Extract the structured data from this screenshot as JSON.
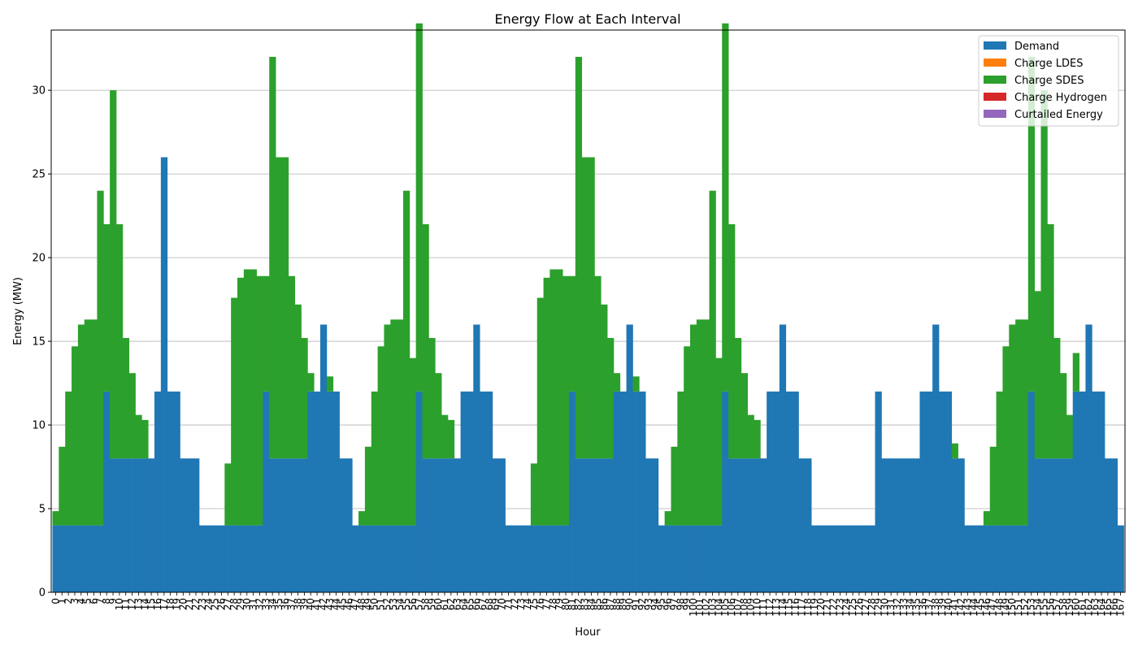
{
  "chart_data": {
    "type": "bar",
    "stacked": true,
    "title": "Energy Flow at Each Interval",
    "xlabel": "Hour",
    "ylabel": "Energy (MW)",
    "ylim": [
      0,
      33.6
    ],
    "yticks": [
      0,
      5,
      10,
      15,
      20,
      25,
      30
    ],
    "grid": "y",
    "legend_position": "top-right",
    "x_start": 0,
    "x_end": 167,
    "series": [
      {
        "name": "Demand",
        "color": "#1f77b4",
        "values": [
          4,
          4,
          4,
          4,
          4,
          4,
          4,
          4,
          12,
          8,
          8,
          8,
          8,
          8,
          8,
          8,
          12,
          26,
          12,
          12,
          8,
          8,
          8,
          4,
          4,
          4,
          4,
          4,
          4,
          4,
          4,
          4,
          4,
          12,
          8,
          8,
          8,
          8,
          8,
          8,
          12,
          12,
          16,
          12,
          12,
          8,
          8,
          4,
          4,
          4,
          4,
          4,
          4,
          4,
          4,
          4,
          4,
          12,
          8,
          8,
          8,
          8,
          8,
          8,
          12,
          12,
          16,
          12,
          12,
          8,
          8,
          4,
          4,
          4,
          4,
          4,
          4,
          4,
          4,
          4,
          4,
          12,
          8,
          8,
          8,
          8,
          8,
          8,
          12,
          12,
          16,
          12,
          12,
          8,
          8,
          4,
          4,
          4,
          4,
          4,
          4,
          4,
          4,
          4,
          4,
          12,
          8,
          8,
          8,
          8,
          8,
          8,
          12,
          12,
          16,
          12,
          12,
          8,
          8,
          4,
          4,
          4,
          4,
          4,
          4,
          4,
          4,
          4,
          4,
          12,
          8,
          8,
          8,
          8,
          8,
          8,
          12,
          12,
          16,
          12,
          12,
          8,
          8,
          4,
          4,
          4,
          4,
          4,
          4,
          4,
          4,
          4,
          4,
          12,
          8,
          8,
          8,
          8,
          8,
          8,
          12,
          12,
          16,
          12,
          12,
          8,
          8,
          4
        ]
      },
      {
        "name": "Charge LDES",
        "color": "#ff7f0e",
        "values": []
      },
      {
        "name": "Charge SDES",
        "color": "#2ca02c",
        "values": [
          0.85,
          4.7,
          8,
          10.7,
          12,
          12.3,
          12.3,
          20,
          10,
          22,
          14,
          7.2,
          5.1,
          2.6,
          2.3,
          0,
          0,
          0,
          0,
          0,
          0,
          0,
          0,
          0,
          0,
          0,
          0,
          3.7,
          13.6,
          14.8,
          15.3,
          15.3,
          14.9,
          6.9,
          24,
          18,
          18,
          10.9,
          9.2,
          7.2,
          1.1,
          0,
          0,
          0.9,
          0,
          0,
          0,
          0,
          0.85,
          4.7,
          8,
          10.7,
          12,
          12.3,
          12.3,
          20,
          10,
          22,
          14,
          7.2,
          5.1,
          2.6,
          2.3,
          0,
          0,
          0,
          0,
          0,
          0,
          0,
          0,
          0,
          0,
          0,
          0,
          3.7,
          13.6,
          14.8,
          15.3,
          15.3,
          14.9,
          6.9,
          24,
          18,
          18,
          10.9,
          9.2,
          7.2,
          1.1,
          0,
          0,
          0.9,
          0,
          0,
          0,
          0,
          0.85,
          4.7,
          8,
          10.7,
          12,
          12.3,
          12.3,
          20,
          10,
          22,
          14,
          7.2,
          5.1,
          2.6,
          2.3,
          0,
          0,
          0,
          0,
          0,
          0,
          0,
          0,
          0,
          0,
          0,
          0,
          0,
          0,
          0,
          0,
          0,
          0,
          0,
          0,
          0,
          0,
          0,
          0,
          0,
          0,
          0,
          0,
          0,
          0,
          0.9,
          0,
          0,
          0,
          0,
          0.85,
          4.7,
          8,
          10.7,
          12,
          12.3,
          12.3,
          20,
          10,
          22,
          14,
          7.2,
          5.1,
          2.6,
          2.3,
          0,
          0,
          0,
          0,
          0,
          0,
          0,
          0,
          0
        ]
      },
      {
        "name": "Charge Hydrogen",
        "color": "#d62728",
        "values": []
      },
      {
        "name": "Curtailed Energy",
        "color": "#9467bd",
        "values": []
      }
    ]
  }
}
